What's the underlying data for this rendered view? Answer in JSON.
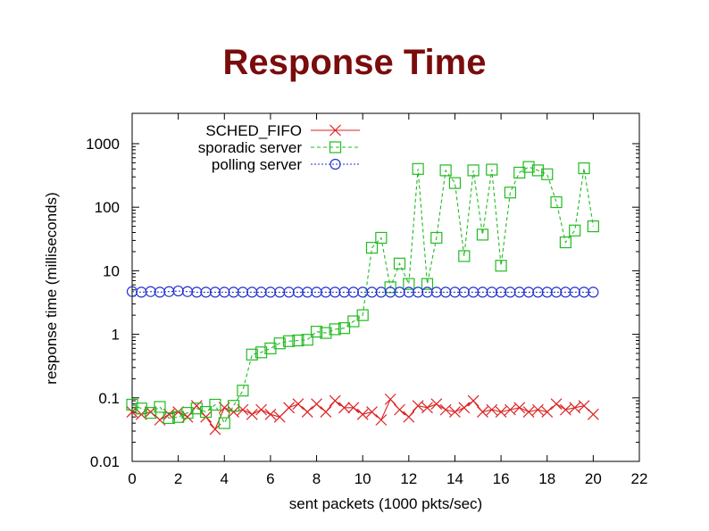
{
  "title": "Response Time",
  "chart_data": {
    "type": "line",
    "xlabel": "sent packets (1000 pkts/sec)",
    "ylabel": "response time (milliseconds)",
    "xlim": [
      0,
      22
    ],
    "ylim": [
      0.01,
      3000
    ],
    "yscale": "log",
    "x_ticks": [
      "0",
      "2",
      "4",
      "6",
      "8",
      "10",
      "12",
      "14",
      "16",
      "18",
      "20",
      "22"
    ],
    "y_ticks": [
      {
        "value": 0.01,
        "label": "0.01"
      },
      {
        "value": 0.1,
        "label": "0.1"
      },
      {
        "value": 1,
        "label": "1"
      },
      {
        "value": 10,
        "label": "10"
      },
      {
        "value": 100,
        "label": "100"
      },
      {
        "value": 1000,
        "label": "1000"
      }
    ],
    "grid": false,
    "legend_position": "top-left",
    "series": [
      {
        "name": "SCHED_FIFO",
        "color": "#dd2222",
        "dash": "solid",
        "marker": "cross",
        "x": [
          0,
          0.4,
          0.8,
          1.2,
          1.6,
          2.0,
          2.4,
          2.8,
          3.2,
          3.6,
          4.0,
          4.4,
          4.8,
          5.2,
          5.6,
          6.0,
          6.4,
          6.8,
          7.2,
          7.6,
          8.0,
          8.4,
          8.8,
          9.2,
          9.6,
          10.0,
          10.4,
          10.8,
          11.2,
          11.6,
          12.0,
          12.4,
          12.8,
          13.2,
          13.6,
          14.0,
          14.4,
          14.8,
          15.2,
          15.6,
          16.0,
          16.4,
          16.8,
          17.2,
          17.6,
          18.0,
          18.4,
          18.8,
          19.2,
          19.6,
          20.0
        ],
        "y": [
          0.06,
          0.055,
          0.06,
          0.045,
          0.055,
          0.06,
          0.05,
          0.075,
          0.05,
          0.032,
          0.07,
          0.06,
          0.065,
          0.055,
          0.065,
          0.055,
          0.05,
          0.07,
          0.08,
          0.06,
          0.08,
          0.06,
          0.09,
          0.07,
          0.07,
          0.055,
          0.06,
          0.045,
          0.095,
          0.065,
          0.05,
          0.075,
          0.07,
          0.08,
          0.065,
          0.06,
          0.07,
          0.09,
          0.06,
          0.065,
          0.06,
          0.065,
          0.07,
          0.06,
          0.065,
          0.06,
          0.08,
          0.065,
          0.07,
          0.075,
          0.055
        ]
      },
      {
        "name": "sporadic server",
        "color": "#22bb22",
        "dash": "dashed",
        "marker": "square",
        "x": [
          0,
          0.4,
          0.8,
          1.2,
          1.6,
          2.0,
          2.4,
          2.8,
          3.2,
          3.6,
          4.0,
          4.4,
          4.8,
          5.2,
          5.6,
          6.0,
          6.4,
          6.8,
          7.2,
          7.6,
          8.0,
          8.4,
          8.8,
          9.2,
          9.6,
          10.0,
          10.4,
          10.8,
          11.2,
          11.6,
          12.0,
          12.4,
          12.8,
          13.2,
          13.6,
          14.0,
          14.4,
          14.8,
          15.2,
          15.6,
          16.0,
          16.4,
          16.8,
          17.2,
          17.6,
          18.0,
          18.4,
          18.8,
          19.2,
          19.6,
          20.0
        ],
        "y": [
          0.078,
          0.068,
          0.058,
          0.072,
          0.048,
          0.05,
          0.058,
          0.068,
          0.06,
          0.078,
          0.04,
          0.075,
          0.13,
          0.48,
          0.52,
          0.6,
          0.72,
          0.78,
          0.8,
          0.82,
          1.1,
          1.05,
          1.2,
          1.25,
          1.6,
          2.0,
          23,
          33,
          5.5,
          13,
          6.2,
          400,
          6.2,
          33,
          380,
          240,
          17,
          380,
          37,
          390,
          12,
          170,
          350,
          430,
          380,
          330,
          120,
          28,
          43,
          410,
          50
        ]
      },
      {
        "name": "polling server",
        "color": "#2233cc",
        "dash": "dotted",
        "marker": "circle",
        "x": [
          0,
          0.4,
          0.8,
          1.2,
          1.6,
          2.0,
          2.4,
          2.8,
          3.2,
          3.6,
          4.0,
          4.4,
          4.8,
          5.2,
          5.6,
          6.0,
          6.4,
          6.8,
          7.2,
          7.6,
          8.0,
          8.4,
          8.8,
          9.2,
          9.6,
          10.0,
          10.4,
          10.8,
          11.2,
          11.6,
          12.0,
          12.4,
          12.8,
          13.2,
          13.6,
          14.0,
          14.4,
          14.8,
          15.2,
          15.6,
          16.0,
          16.4,
          16.8,
          17.2,
          17.6,
          18.0,
          18.4,
          18.8,
          19.2,
          19.6,
          20.0
        ],
        "y": [
          4.7,
          4.6,
          4.7,
          4.6,
          4.7,
          4.8,
          4.7,
          4.6,
          4.6,
          4.6,
          4.6,
          4.6,
          4.6,
          4.6,
          4.6,
          4.6,
          4.6,
          4.6,
          4.6,
          4.6,
          4.6,
          4.6,
          4.6,
          4.6,
          4.6,
          4.6,
          4.6,
          4.6,
          4.6,
          4.6,
          4.6,
          4.6,
          4.6,
          4.6,
          4.6,
          4.6,
          4.6,
          4.6,
          4.6,
          4.6,
          4.6,
          4.6,
          4.6,
          4.6,
          4.6,
          4.6,
          4.6,
          4.6,
          4.6,
          4.6,
          4.6
        ]
      }
    ]
  }
}
